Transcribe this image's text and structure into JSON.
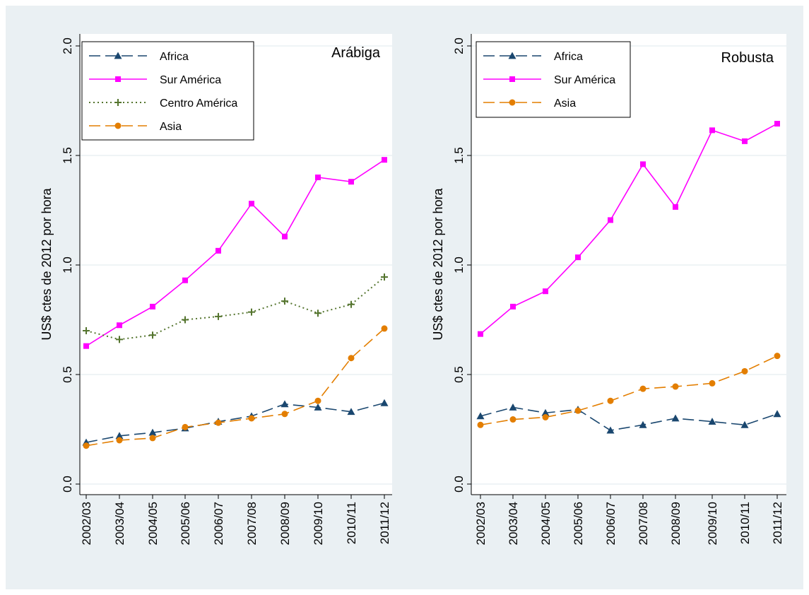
{
  "colors": {
    "background": "#eaf0f3",
    "plot_background": "#ffffff",
    "gridline": "#eaf0f3",
    "africa": "#1a476f",
    "sur_america": "#ff00ff",
    "centro_america": "#55752f",
    "asia": "#e37e00"
  },
  "chart_data": [
    {
      "type": "line",
      "title": "Arábiga",
      "ylabel": "US$ ctes de 2012 por hora",
      "xlabel": "",
      "ylim": [
        0,
        2
      ],
      "yticks": [
        "0.0",
        "0.5",
        "1.0",
        "1.5",
        "2.0"
      ],
      "grid": true,
      "legend_position": "top-left",
      "categories": [
        "2002/03",
        "2003/04",
        "2004/05",
        "2005/06",
        "2006/07",
        "2007/08",
        "2008/09",
        "2009/10",
        "2010/11",
        "2011/12"
      ],
      "series": [
        {
          "name": "Africa",
          "color": "#1a476f",
          "dash": "long-dash",
          "marker": "triangle",
          "values": [
            0.19,
            0.22,
            0.235,
            0.255,
            0.285,
            0.31,
            0.365,
            0.35,
            0.33,
            0.37
          ]
        },
        {
          "name": "Sur América",
          "color": "#ff00ff",
          "dash": "solid",
          "marker": "square",
          "values": [
            0.63,
            0.725,
            0.81,
            0.93,
            1.065,
            1.28,
            1.13,
            1.4,
            1.38,
            1.48
          ]
        },
        {
          "name": "Centro América",
          "color": "#55752f",
          "dash": "dotted",
          "marker": "plus",
          "values": [
            0.7,
            0.66,
            0.68,
            0.75,
            0.765,
            0.785,
            0.835,
            0.78,
            0.82,
            0.945
          ]
        },
        {
          "name": "Asia",
          "color": "#e37e00",
          "dash": "long-dash",
          "marker": "circle",
          "values": [
            0.175,
            0.2,
            0.21,
            0.26,
            0.28,
            0.3,
            0.32,
            0.38,
            0.575,
            0.71
          ]
        }
      ]
    },
    {
      "type": "line",
      "title": "Robusta",
      "ylabel": "US$ ctes de 2012 por hora",
      "xlabel": "",
      "ylim": [
        0,
        2
      ],
      "yticks": [
        "0.0",
        "0.5",
        "1.0",
        "1.5",
        "2.0"
      ],
      "grid": true,
      "legend_position": "top-left",
      "categories": [
        "2002/03",
        "2003/04",
        "2004/05",
        "2005/06",
        "2006/07",
        "2007/08",
        "2008/09",
        "2009/10",
        "2010/11",
        "2011/12"
      ],
      "series": [
        {
          "name": "Africa",
          "color": "#1a476f",
          "dash": "long-dash",
          "marker": "triangle",
          "values": [
            0.31,
            0.35,
            0.325,
            0.34,
            0.245,
            0.27,
            0.3,
            0.285,
            0.27,
            0.32
          ]
        },
        {
          "name": "Sur América",
          "color": "#ff00ff",
          "dash": "solid",
          "marker": "square",
          "values": [
            0.685,
            0.81,
            0.88,
            1.035,
            1.205,
            1.46,
            1.265,
            1.615,
            1.565,
            1.645
          ]
        },
        {
          "name": "Asia",
          "color": "#e37e00",
          "dash": "long-dash",
          "marker": "circle",
          "values": [
            0.27,
            0.295,
            0.305,
            0.335,
            0.38,
            0.435,
            0.445,
            0.46,
            0.515,
            0.585
          ]
        }
      ]
    }
  ]
}
